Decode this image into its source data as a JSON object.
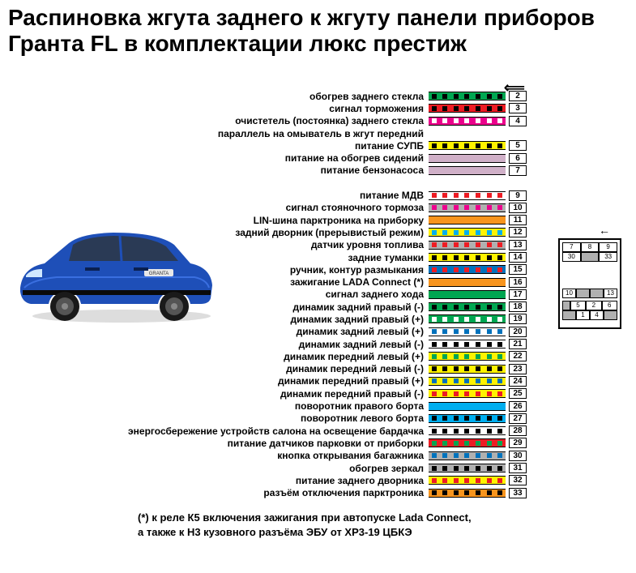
{
  "title": "Распиновка жгута заднего к жгуту панели приборов Гранта FL в комплектации люкс престиж",
  "ground_symbol": "⟸",
  "connector_arrow": "←",
  "footnote_line1": "(*) к реле К5 включения зажигания при автопуске Lada Connect,",
  "footnote_line2": "а также к Н3 кузовного разъёма ЭБУ от ХР3-19 ЦБКЭ",
  "styling": {
    "background": "#ffffff",
    "text_color": "#000000",
    "title_fontsize": 28,
    "row_fontsize": 12,
    "row_height": 15.3,
    "wire_width": 95,
    "pin_box_width": 22
  },
  "pins": [
    {
      "num": "2",
      "label": "обогрев заднего стекла",
      "base": "#00a651",
      "stripe": "#000000"
    },
    {
      "num": "3",
      "label": "сигнал торможения",
      "base": "#ed1c24",
      "stripe": "#000000"
    },
    {
      "num": "4",
      "label": "очистетель (постоянка) заднего стекла",
      "base": "#ec008c",
      "stripe": "#ffffff"
    },
    {
      "num": "",
      "label": "параллель на омыватель в жгут передний",
      "base": "blank",
      "stripe": ""
    },
    {
      "num": "5",
      "label": "питание СУПБ",
      "base": "#fff200",
      "stripe": "#000000"
    },
    {
      "num": "6",
      "label": "питание на обогрев сидений",
      "base": "#d0b0c8",
      "stripe": ""
    },
    {
      "num": "7",
      "label": "питание бензонасоса",
      "base": "#d0b0c8",
      "stripe": ""
    },
    {
      "num": "",
      "label": "",
      "base": "blank",
      "stripe": ""
    },
    {
      "num": "9",
      "label": "питание МДВ",
      "base": "#ffffff",
      "stripe": "#ed1c24"
    },
    {
      "num": "10",
      "label": "сигнал стояночного тормоза",
      "base": "#b0b0b0",
      "stripe": "#ec008c"
    },
    {
      "num": "11",
      "label": "LIN-шина парктроника на приборку",
      "base": "#f7941d",
      "stripe": ""
    },
    {
      "num": "12",
      "label": "задний дворник (прерывистый режим)",
      "base": "#fff200",
      "stripe": "#00aeef"
    },
    {
      "num": "13",
      "label": "датчик уровня топлива",
      "base": "#b0b0b0",
      "stripe": "#ed1c24"
    },
    {
      "num": "14",
      "label": "задние туманки",
      "base": "#fff200",
      "stripe": "#000000"
    },
    {
      "num": "15",
      "label": "ручник, контур размыкания",
      "base": "#0072bc",
      "stripe": "#ed1c24"
    },
    {
      "num": "16",
      "label": "зажигание LADA Connect (*)",
      "base": "#f7941d",
      "stripe": ""
    },
    {
      "num": "17",
      "label": "сигнал заднего хода",
      "base": "#00a651",
      "stripe": ""
    },
    {
      "num": "18",
      "label": "динамик задний правый (-)",
      "base": "#00a651",
      "stripe": "#000000"
    },
    {
      "num": "19",
      "label": "динамик задний правый (+)",
      "base": "#00a651",
      "stripe": "#ffffff"
    },
    {
      "num": "20",
      "label": "динамик задний левый (+)",
      "base": "#ffffff",
      "stripe": "#0072bc"
    },
    {
      "num": "21",
      "label": "динамик задний левый (-)",
      "base": "#ffffff",
      "stripe": "#000000"
    },
    {
      "num": "22",
      "label": "динамик передний левый (+)",
      "base": "#fff200",
      "stripe": "#00a651"
    },
    {
      "num": "23",
      "label": "динамик передний левый (-)",
      "base": "#fff200",
      "stripe": "#000000"
    },
    {
      "num": "24",
      "label": "динамик передний правый (+)",
      "base": "#fff200",
      "stripe": "#0072bc"
    },
    {
      "num": "25",
      "label": "динамик передний правый (-)",
      "base": "#fff200",
      "stripe": "#ed1c24"
    },
    {
      "num": "26",
      "label": "поворотник правого борта",
      "base": "#00aeef",
      "stripe": ""
    },
    {
      "num": "27",
      "label": "поворотник левого борта",
      "base": "#00aeef",
      "stripe": "#000000"
    },
    {
      "num": "28",
      "label": "энергосбережение устройств салона на освещение бардачка",
      "base": "#ffffff",
      "stripe": "#000000"
    },
    {
      "num": "29",
      "label": "питание датчиков парковки от приборки",
      "base": "#ed1c24",
      "stripe": "#00a651"
    },
    {
      "num": "30",
      "label": "кнопка открывания багажника",
      "base": "#b0b0b0",
      "stripe": "#0072bc"
    },
    {
      "num": "31",
      "label": "обогрев зеркал",
      "base": "#b0b0b0",
      "stripe": "#000000"
    },
    {
      "num": "32",
      "label": "питание заднего дворника",
      "base": "#fff200",
      "stripe": "#ed1c24"
    },
    {
      "num": "33",
      "label": "разъём отключения парктроника",
      "base": "#f7941d",
      "stripe": "#000000"
    }
  ],
  "connector": {
    "top_row": [
      "7",
      "8",
      "9"
    ],
    "row2": [
      "30",
      "",
      "33"
    ],
    "mid_row": [
      "10",
      "",
      "",
      "13"
    ],
    "bot_row1": [
      "5",
      "2",
      "6"
    ],
    "bot_row2": [
      "",
      "1",
      "4",
      ""
    ]
  },
  "car": {
    "body_color": "#1e4fb8",
    "highlight_color": "#3a6fe0",
    "wheel_color": "#1a1a1a",
    "rim_color": "#555555",
    "window_color": "#2a3a55",
    "badge_text": "GRANTA"
  }
}
